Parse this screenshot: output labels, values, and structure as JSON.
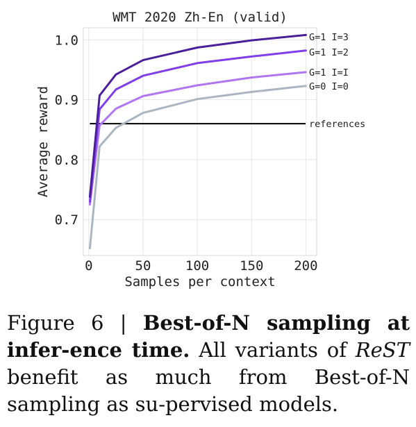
{
  "chart_data": {
    "type": "line",
    "title": "WMT 2020 Zh-En (valid)",
    "xlabel": "Samples per context",
    "ylabel": "Average reward",
    "xlim": [
      -5,
      210
    ],
    "ylim": [
      0.64,
      1.02
    ],
    "xticks": [
      0,
      50,
      100,
      150,
      200
    ],
    "xtick_labels": [
      "0",
      "50",
      "100",
      "150",
      "200"
    ],
    "yticks": [
      0.7,
      0.8,
      0.9,
      1.0
    ],
    "ytick_labels": [
      "0.7",
      "0.8",
      "0.9",
      "1.0"
    ],
    "grid": true,
    "legend": "direct labels at line ends (right)",
    "series": [
      {
        "name": "G=0 I=0",
        "color": "#aab5c2",
        "x": [
          1,
          10,
          25,
          50,
          100,
          150,
          200
        ],
        "y": [
          0.652,
          0.822,
          0.853,
          0.878,
          0.901,
          0.913,
          0.923
        ]
      },
      {
        "name": "G=1 I=I",
        "color": "#b076f0",
        "x": [
          1,
          10,
          25,
          50,
          100,
          150,
          200
        ],
        "y": [
          0.725,
          0.857,
          0.885,
          0.906,
          0.924,
          0.937,
          0.946
        ]
      },
      {
        "name": "G=1 I=2",
        "color": "#7f3ee6",
        "x": [
          1,
          10,
          25,
          50,
          100,
          150,
          200
        ],
        "y": [
          0.73,
          0.884,
          0.917,
          0.94,
          0.961,
          0.972,
          0.982
        ]
      },
      {
        "name": "G=1 I=3",
        "color": "#4b1f9a",
        "x": [
          1,
          10,
          25,
          50,
          100,
          150,
          200
        ],
        "y": [
          0.738,
          0.907,
          0.942,
          0.966,
          0.987,
          0.999,
          1.008
        ]
      }
    ],
    "reference_line": {
      "label": "references",
      "y": 0.86,
      "color": "#000000"
    }
  },
  "caption": {
    "figure_label": "Figure 6 | ",
    "title": "Best-of-N sampling at infer-ence time.",
    "text_before_italic": " All variants of ",
    "italic": "ReST",
    "text_after_italic": " benefit as much from Best-of-N sampling as su-pervised models."
  }
}
